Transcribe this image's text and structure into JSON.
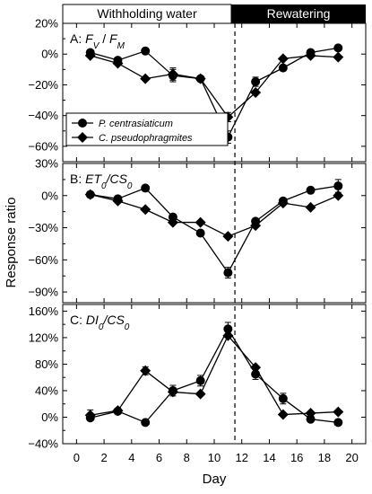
{
  "chart_data": {
    "type": "line",
    "x_label": "Day",
    "y_label": "Response  ratio",
    "x_ticks": [
      "0",
      "2",
      "4",
      "6",
      "8",
      "10",
      "12",
      "14",
      "16",
      "18",
      "20"
    ],
    "xlim": [
      -1,
      21
    ],
    "phases": {
      "withholding": "Withholding water",
      "rewatering": "Rewatering"
    },
    "phase_boundary_day": 11.5,
    "legend": {
      "s1": "P. centrasiaticum",
      "s2": "C. pseudophragmites"
    },
    "panels": [
      {
        "label_prefix": "A: ",
        "title_parts": [
          {
            "t": "F",
            "italic": true
          },
          {
            "t": "V",
            "italic": true,
            "sub": true
          },
          {
            "t": " / ",
            "italic": false
          },
          {
            "t": "F",
            "italic": true
          },
          {
            "t": "M",
            "italic": true,
            "sub": true
          }
        ],
        "ylim": [
          -70,
          20
        ],
        "ticks": [
          20,
          0,
          -20,
          -40,
          -60
        ],
        "tick_labels": [
          "20%",
          "0%",
          "−20%",
          "−40%",
          "−60%"
        ],
        "show_legend": true,
        "series": [
          {
            "name": "P. centrasiaticum",
            "marker": "circle",
            "points": [
              [
                1,
                1
              ],
              [
                3,
                -4
              ],
              [
                5,
                2
              ],
              [
                7,
                -14
              ],
              [
                9,
                -16
              ],
              [
                11,
                -54
              ],
              [
                13,
                -18
              ],
              [
                15,
                -9
              ],
              [
                17,
                1
              ],
              [
                19,
                4
              ]
            ],
            "err": {
              "7": 4,
              "11": 4,
              "13": 3
            }
          },
          {
            "name": "C. pseudophragmites",
            "marker": "diamond",
            "points": [
              [
                1,
                -1
              ],
              [
                3,
                -6
              ],
              [
                5,
                -16
              ],
              [
                7,
                -13
              ],
              [
                9,
                -16
              ],
              [
                11,
                -41
              ],
              [
                13,
                -25
              ],
              [
                15,
                -3
              ],
              [
                17,
                -1
              ],
              [
                19,
                -2
              ]
            ],
            "err": {
              "7": 4,
              "11": 3
            }
          }
        ]
      },
      {
        "label_prefix": "B: ",
        "title_parts": [
          {
            "t": "ET",
            "italic": true
          },
          {
            "t": "0",
            "italic": true,
            "sub": true
          },
          {
            "t": "/",
            "italic": true
          },
          {
            "t": "CS",
            "italic": true
          },
          {
            "t": "0",
            "italic": true,
            "sub": true
          }
        ],
        "ylim": [
          -100,
          30
        ],
        "ticks": [
          30,
          0,
          -30,
          -60,
          -90
        ],
        "tick_labels": [
          "30%",
          "0%",
          "−30%",
          "−60%",
          "−90%"
        ],
        "show_legend": false,
        "series": [
          {
            "name": "P. centrasiaticum",
            "marker": "circle",
            "points": [
              [
                1,
                1
              ],
              [
                3,
                -3
              ],
              [
                5,
                7
              ],
              [
                7,
                -20
              ],
              [
                9,
                -35
              ],
              [
                11,
                -72
              ],
              [
                13,
                -24
              ],
              [
                15,
                -5
              ],
              [
                17,
                5
              ],
              [
                19,
                9
              ]
            ],
            "err": {
              "11": 5,
              "19": 6
            }
          },
          {
            "name": "C. pseudophragmites",
            "marker": "diamond",
            "points": [
              [
                1,
                1
              ],
              [
                3,
                -5
              ],
              [
                5,
                -13
              ],
              [
                7,
                -25
              ],
              [
                9,
                -25
              ],
              [
                11,
                -38
              ],
              [
                13,
                -28
              ],
              [
                15,
                -7
              ],
              [
                17,
                -11
              ],
              [
                19,
                0
              ]
            ],
            "err": {}
          }
        ]
      },
      {
        "label_prefix": "C: ",
        "title_parts": [
          {
            "t": "DI",
            "italic": true
          },
          {
            "t": "0",
            "italic": true,
            "sub": true
          },
          {
            "t": "/",
            "italic": true
          },
          {
            "t": "CS",
            "italic": true
          },
          {
            "t": "0",
            "italic": true,
            "sub": true
          }
        ],
        "ylim": [
          -40,
          170
        ],
        "ticks": [
          160,
          120,
          80,
          40,
          0,
          -40
        ],
        "tick_labels": [
          "160%",
          "120%",
          "80%",
          "40%",
          "0%",
          "−40%"
        ],
        "show_legend": false,
        "series": [
          {
            "name": "P. centrasiaticum",
            "marker": "circle",
            "points": [
              [
                1,
                -1
              ],
              [
                3,
                9
              ],
              [
                5,
                -8
              ],
              [
                7,
                40
              ],
              [
                9,
                55
              ],
              [
                11,
                133
              ],
              [
                13,
                65
              ],
              [
                15,
                28
              ],
              [
                17,
                -3
              ],
              [
                19,
                -8
              ]
            ],
            "err": {
              "7": 8,
              "9": 8,
              "11": 10,
              "13": 8,
              "15": 8
            }
          },
          {
            "name": "C. pseudophragmites",
            "marker": "diamond",
            "points": [
              [
                1,
                3
              ],
              [
                3,
                10
              ],
              [
                5,
                70
              ],
              [
                7,
                38
              ],
              [
                9,
                35
              ],
              [
                11,
                123
              ],
              [
                13,
                75
              ],
              [
                15,
                4
              ],
              [
                17,
                6
              ],
              [
                19,
                8
              ]
            ],
            "err": {
              "1": 8,
              "5": 6
            }
          }
        ]
      }
    ]
  }
}
